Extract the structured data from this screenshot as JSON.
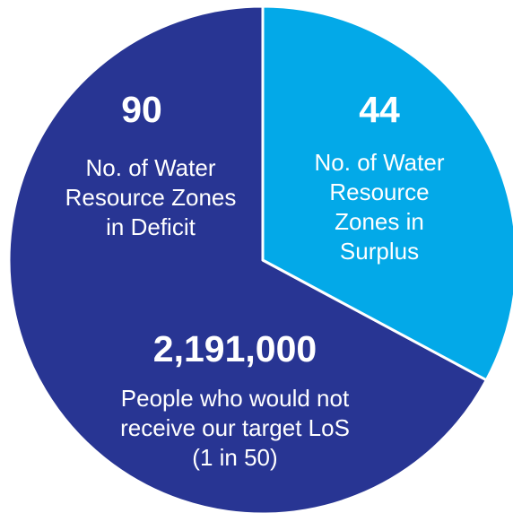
{
  "chart_data": {
    "type": "pie",
    "slices": [
      {
        "value": 90,
        "value_label": "90",
        "label_lines": [
          "No. of Water",
          "Resource Zones",
          "in Deficit"
        ],
        "color": "#283593"
      },
      {
        "value": 44,
        "value_label": "44",
        "label_lines": [
          "No. of Water",
          "Resource",
          "Zones in",
          "Surplus"
        ],
        "color": "#03a9e8"
      }
    ],
    "annotation": {
      "value_label": "2,191,000",
      "label_lines": [
        "People who would not",
        "receive our target LoS",
        "(1 in 50)"
      ]
    },
    "colors": {
      "deficit": "#283593",
      "surplus": "#03a9e8",
      "text": "#ffffff"
    }
  }
}
